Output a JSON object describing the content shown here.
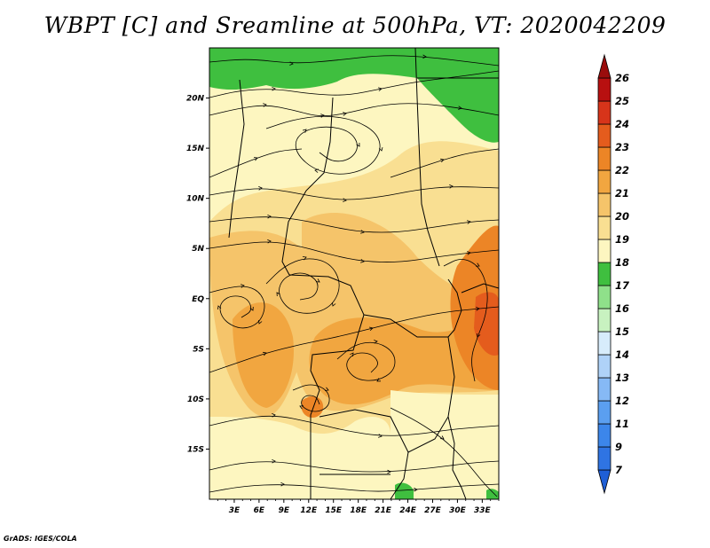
{
  "chart_data": {
    "type": "heatmap",
    "title": "WBPT [C] and Sreamline at 500hPa, VT: 2020042209",
    "variable": "WBPT [C]",
    "overlay": "streamlines",
    "level": "500hPa",
    "valid_time": "2020042209",
    "x_axis": {
      "label": "",
      "unit": "longitude",
      "range": [
        0,
        35
      ],
      "ticks": [
        3,
        6,
        9,
        12,
        15,
        18,
        21,
        24,
        27,
        30,
        33
      ],
      "tick_labels": [
        "3E",
        "6E",
        "9E",
        "12E",
        "15E",
        "18E",
        "21E",
        "24E",
        "27E",
        "30E",
        "33E"
      ]
    },
    "y_axis": {
      "label": "",
      "unit": "latitude",
      "range": [
        -20,
        25
      ],
      "ticks": [
        20,
        15,
        10,
        5,
        0,
        -5,
        -10,
        -15
      ],
      "tick_labels": [
        "20N",
        "15N",
        "10N",
        "5N",
        "EQ",
        "5S",
        "10S",
        "15S"
      ]
    },
    "colorbar": {
      "levels": [
        "7",
        "9",
        "11",
        "12",
        "13",
        "14",
        "15",
        "16",
        "17",
        "18",
        "19",
        "20",
        "21",
        "22",
        "23",
        "24",
        "25",
        "26"
      ],
      "colors": [
        "#1f5fd6",
        "#2f74e3",
        "#3c86ea",
        "#5b9ff0",
        "#86b9f5",
        "#afd2f8",
        "#d7ecfb",
        "#c8f2c0",
        "#8fe08a",
        "#3fbf3f",
        "#fdf6c0",
        "#f9df92",
        "#f5c46a",
        "#f1a640",
        "#ec8526",
        "#e45c1d",
        "#d7341a",
        "#b81010",
        "#9a0c0c"
      ],
      "extend": "both"
    }
  },
  "credit": "GrADS: IGES/COLA"
}
